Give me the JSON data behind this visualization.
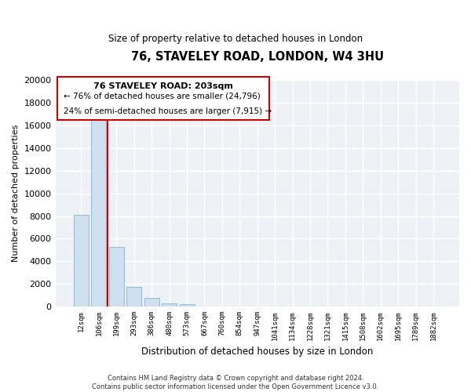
{
  "title": "76, STAVELEY ROAD, LONDON, W4 3HU",
  "subtitle": "Size of property relative to detached houses in London",
  "xlabel": "Distribution of detached houses by size in London",
  "ylabel": "Number of detached properties",
  "bar_color": "#cfe0f0",
  "bar_edge_color": "#9bbdd6",
  "annotation_line_color": "#cc0000",
  "categories": [
    "12sqm",
    "106sqm",
    "199sqm",
    "293sqm",
    "386sqm",
    "480sqm",
    "573sqm",
    "667sqm",
    "760sqm",
    "854sqm",
    "947sqm",
    "1041sqm",
    "1134sqm",
    "1228sqm",
    "1321sqm",
    "1415sqm",
    "1508sqm",
    "1602sqm",
    "1695sqm",
    "1789sqm",
    "1882sqm"
  ],
  "bar_heights": [
    8100,
    16500,
    5300,
    1750,
    800,
    310,
    220,
    0,
    0,
    0,
    0,
    0,
    0,
    0,
    0,
    0,
    0,
    0,
    0,
    0,
    0
  ],
  "annotation_text_line1": "76 STAVELEY ROAD: 203sqm",
  "annotation_text_line2": "← 76% of detached houses are smaller (24,796)",
  "annotation_text_line3": "24% of semi-detached houses are larger (7,915) →",
  "ylim": [
    0,
    20000
  ],
  "yticks": [
    0,
    2000,
    4000,
    6000,
    8000,
    10000,
    12000,
    14000,
    16000,
    18000,
    20000
  ],
  "footer_line1": "Contains HM Land Registry data © Crown copyright and database right 2024.",
  "footer_line2": "Contains public sector information licensed under the Open Government Licence v3.0.",
  "background_color": "#eef2f7",
  "grid_color": "#ffffff"
}
